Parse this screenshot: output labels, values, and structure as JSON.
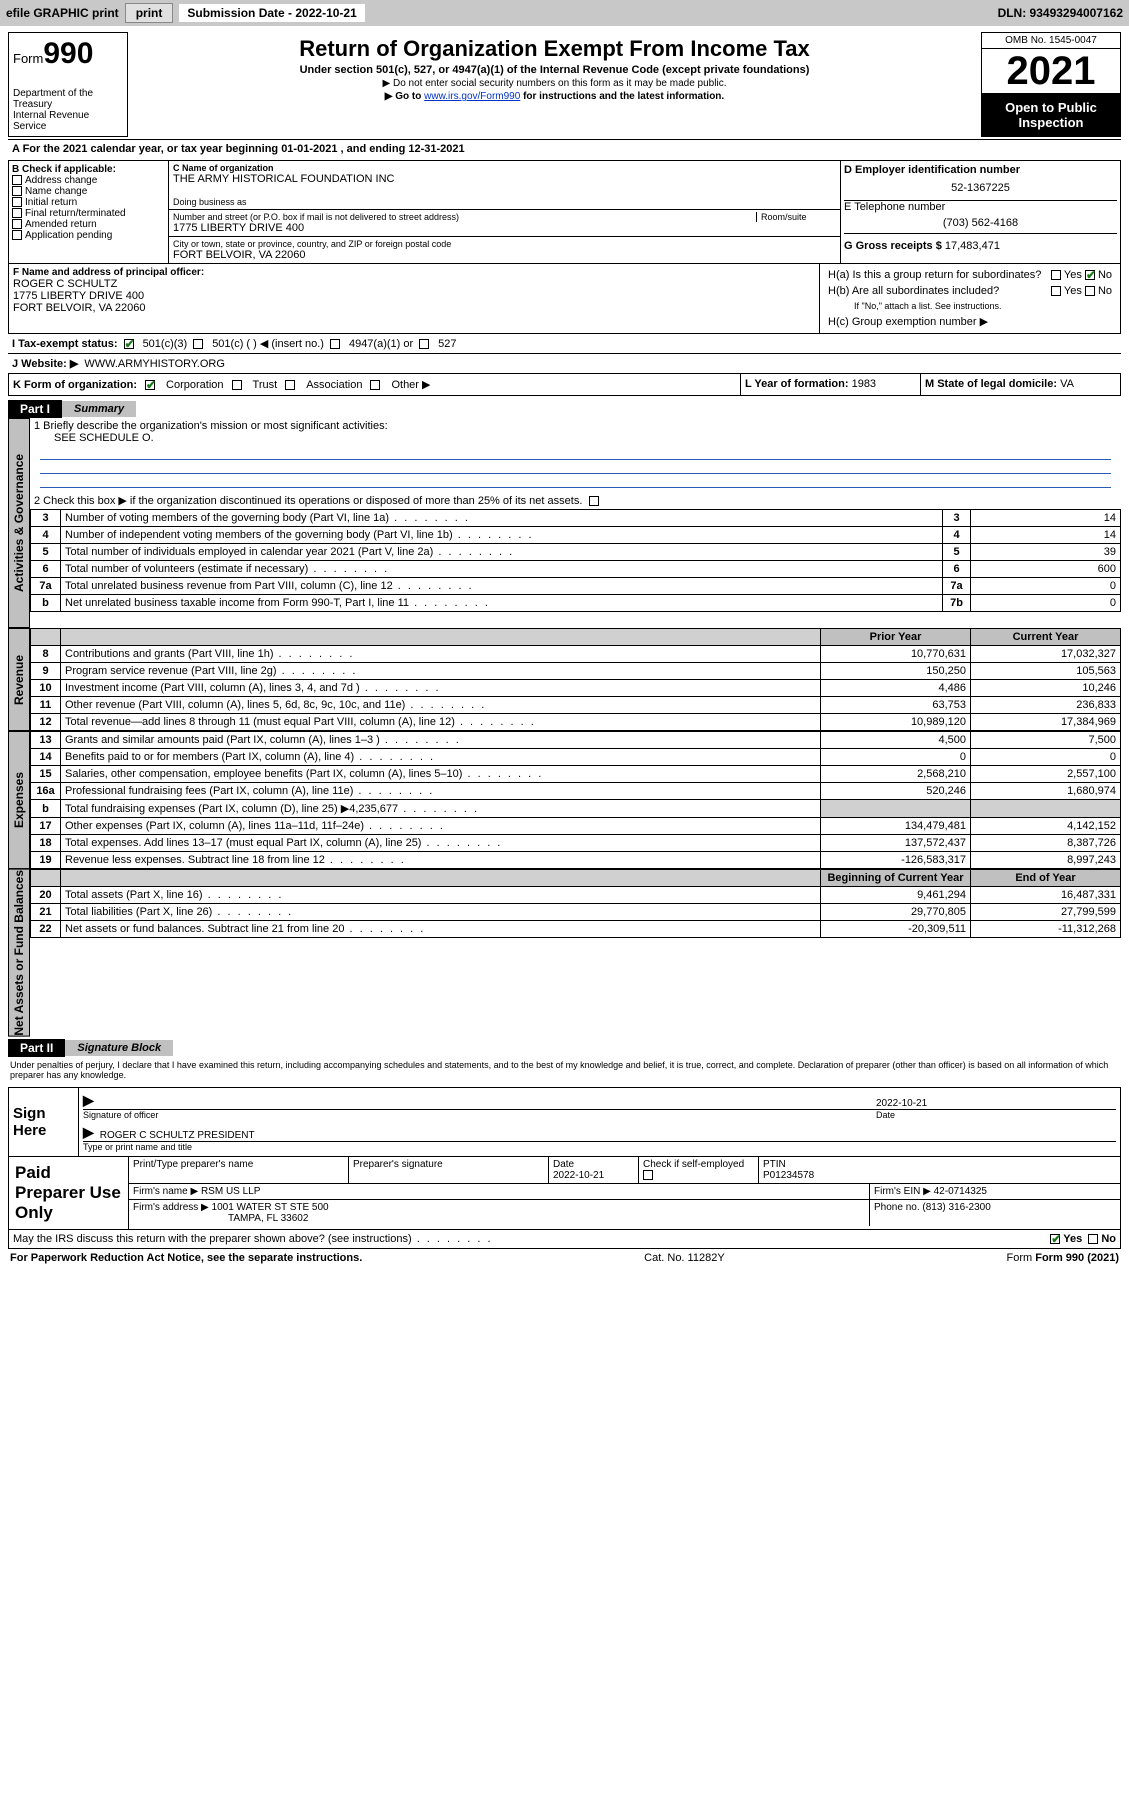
{
  "topbar": {
    "efile": "efile GRAPHIC print",
    "subdate_label": "Submission Date - 2022-10-21",
    "dln_label": "DLN: 93493294007162"
  },
  "header": {
    "form_word": "Form",
    "form_num": "990",
    "dept": "Department of the Treasury\nInternal Revenue Service",
    "title": "Return of Organization Exempt From Income Tax",
    "subtitle": "Under section 501(c), 527, or 4947(a)(1) of the Internal Revenue Code (except private foundations)",
    "note1": "▶ Do not enter social security numbers on this form as it may be made public.",
    "note2_pre": "▶ Go to ",
    "note2_link": "www.irs.gov/Form990",
    "note2_post": " for instructions and the latest information.",
    "omb": "OMB No. 1545-0047",
    "year": "2021",
    "open": "Open to Public Inspection"
  },
  "section_a": {
    "text": "A For the 2021 calendar year, or tax year beginning 01-01-2021   , and ending 12-31-2021"
  },
  "col_b": {
    "heading": "B Check if applicable:",
    "items": [
      "Address change",
      "Name change",
      "Initial return",
      "Final return/terminated",
      "Amended return",
      "Application pending"
    ]
  },
  "col_c": {
    "name_label": "C Name of organization",
    "name": "THE ARMY HISTORICAL FOUNDATION INC",
    "dba_label": "Doing business as",
    "addr_label": "Number and street (or P.O. box if mail is not delivered to street address)",
    "room_label": "Room/suite",
    "addr": "1775 LIBERTY DRIVE 400",
    "city_label": "City or town, state or province, country, and ZIP or foreign postal code",
    "city": "FORT BELVOIR, VA  22060"
  },
  "col_d": {
    "ein_label": "D Employer identification number",
    "ein": "52-1367225",
    "phone_label": "E Telephone number",
    "phone": "(703) 562-4168",
    "gross_label": "G Gross receipts $",
    "gross": "17,483,471"
  },
  "section_f": {
    "label": "F  Name and address of principal officer:",
    "name": "ROGER C SCHULTZ",
    "addr1": "1775 LIBERTY DRIVE 400",
    "addr2": "FORT BELVOIR, VA  22060"
  },
  "section_h": {
    "ha": "H(a)  Is this a group return for subordinates?",
    "hb": "H(b)  Are all subordinates included?",
    "hb_note": "If \"No,\" attach a list. See instructions.",
    "hc": "H(c)  Group exemption number ▶",
    "yes": "Yes",
    "no": "No"
  },
  "section_i": {
    "label": "I     Tax-exempt status:",
    "o1": "501(c)(3)",
    "o2": "501(c) (  ) ◀ (insert no.)",
    "o3": "4947(a)(1) or",
    "o4": "527"
  },
  "section_j": {
    "label": "J    Website: ▶",
    "value": "WWW.ARMYHISTORY.ORG"
  },
  "section_k": {
    "label": "K Form of organization:",
    "o1": "Corporation",
    "o2": "Trust",
    "o3": "Association",
    "o4": "Other ▶"
  },
  "section_l": {
    "label": "L Year of formation:",
    "value": "1983"
  },
  "section_m": {
    "label": "M State of legal domicile:",
    "value": "VA"
  },
  "part1": {
    "hdr": "Part I",
    "title": "Summary",
    "q1_label": "1   Briefly describe the organization's mission or most significant activities:",
    "q1_value": "SEE SCHEDULE O.",
    "q2": "2   Check this box ▶          if the organization discontinued its operations or disposed of more than 25% of its net assets.",
    "sections": {
      "gov": "Activities & Governance",
      "rev": "Revenue",
      "exp": "Expenses",
      "net": "Net Assets or Fund Balances"
    },
    "rows_gov": [
      {
        "n": "3",
        "t": "Number of voting members of the governing body (Part VI, line 1a)",
        "r": "3",
        "v": "14"
      },
      {
        "n": "4",
        "t": "Number of independent voting members of the governing body (Part VI, line 1b)",
        "r": "4",
        "v": "14"
      },
      {
        "n": "5",
        "t": "Total number of individuals employed in calendar year 2021 (Part V, line 2a)",
        "r": "5",
        "v": "39"
      },
      {
        "n": "6",
        "t": "Total number of volunteers (estimate if necessary)",
        "r": "6",
        "v": "600"
      },
      {
        "n": "7a",
        "t": "Total unrelated business revenue from Part VIII, column (C), line 12",
        "r": "7a",
        "v": "0"
      },
      {
        "n": "b",
        "t": "Net unrelated business taxable income from Form 990-T, Part I, line 11",
        "r": "7b",
        "v": "0"
      }
    ],
    "col_hdrs": {
      "prior": "Prior Year",
      "current": "Current Year"
    },
    "rows_rev": [
      {
        "n": "8",
        "t": "Contributions and grants (Part VIII, line 1h)",
        "p": "10,770,631",
        "c": "17,032,327"
      },
      {
        "n": "9",
        "t": "Program service revenue (Part VIII, line 2g)",
        "p": "150,250",
        "c": "105,563"
      },
      {
        "n": "10",
        "t": "Investment income (Part VIII, column (A), lines 3, 4, and 7d )",
        "p": "4,486",
        "c": "10,246"
      },
      {
        "n": "11",
        "t": "Other revenue (Part VIII, column (A), lines 5, 6d, 8c, 9c, 10c, and 11e)",
        "p": "63,753",
        "c": "236,833"
      },
      {
        "n": "12",
        "t": "Total revenue—add lines 8 through 11 (must equal Part VIII, column (A), line 12)",
        "p": "10,989,120",
        "c": "17,384,969"
      }
    ],
    "rows_exp": [
      {
        "n": "13",
        "t": "Grants and similar amounts paid (Part IX, column (A), lines 1–3 )",
        "p": "4,500",
        "c": "7,500"
      },
      {
        "n": "14",
        "t": "Benefits paid to or for members (Part IX, column (A), line 4)",
        "p": "0",
        "c": "0"
      },
      {
        "n": "15",
        "t": "Salaries, other compensation, employee benefits (Part IX, column (A), lines 5–10)",
        "p": "2,568,210",
        "c": "2,557,100"
      },
      {
        "n": "16a",
        "t": "Professional fundraising fees (Part IX, column (A), line 11e)",
        "p": "520,246",
        "c": "1,680,974"
      },
      {
        "n": "b",
        "t": "Total fundraising expenses (Part IX, column (D), line 25) ▶4,235,677",
        "p": "",
        "c": "",
        "shade": true
      },
      {
        "n": "17",
        "t": "Other expenses (Part IX, column (A), lines 11a–11d, 11f–24e)",
        "p": "134,479,481",
        "c": "4,142,152"
      },
      {
        "n": "18",
        "t": "Total expenses. Add lines 13–17 (must equal Part IX, column (A), line 25)",
        "p": "137,572,437",
        "c": "8,387,726"
      },
      {
        "n": "19",
        "t": "Revenue less expenses. Subtract line 18 from line 12",
        "p": "-126,583,317",
        "c": "8,997,243"
      }
    ],
    "col_hdrs2": {
      "prior": "Beginning of Current Year",
      "current": "End of Year"
    },
    "rows_net": [
      {
        "n": "20",
        "t": "Total assets (Part X, line 16)",
        "p": "9,461,294",
        "c": "16,487,331"
      },
      {
        "n": "21",
        "t": "Total liabilities (Part X, line 26)",
        "p": "29,770,805",
        "c": "27,799,599"
      },
      {
        "n": "22",
        "t": "Net assets or fund balances. Subtract line 21 from line 20",
        "p": "-20,309,511",
        "c": "-11,312,268"
      }
    ]
  },
  "part2": {
    "hdr": "Part II",
    "title": "Signature Block",
    "decl": "Under penalties of perjury, I declare that I have examined this return, including accompanying schedules and statements, and to the best of my knowledge and belief, it is true, correct, and complete. Declaration of preparer (other than officer) is based on all information of which preparer has any knowledge."
  },
  "sign": {
    "left": "Sign Here",
    "sig_label": "Signature of officer",
    "date_label": "Date",
    "date": "2022-10-21",
    "name": "ROGER C SCHULTZ  PRESIDENT",
    "name_label": "Type or print name and title"
  },
  "prep": {
    "left": "Paid Preparer Use Only",
    "r1_c1_label": "Print/Type preparer's name",
    "r1_c2_label": "Preparer's signature",
    "r1_c3_label": "Date",
    "r1_c3": "2022-10-21",
    "r1_c4_label": "Check         if self-employed",
    "r1_c5_label": "PTIN",
    "r1_c5": "P01234578",
    "r2_label": "Firm's name     ▶",
    "r2": "RSM US LLP",
    "r2b_label": "Firm's EIN ▶",
    "r2b": "42-0714325",
    "r3_label": "Firm's address ▶",
    "r3a": "1001 WATER ST STE 500",
    "r3b": "TAMPA, FL  33602",
    "r3c_label": "Phone no.",
    "r3c": "(813) 316-2300"
  },
  "footer": {
    "q": "May the IRS discuss this return with the preparer shown above? (see instructions)",
    "yes": "Yes",
    "no": "No",
    "pra": "For Paperwork Reduction Act Notice, see the separate instructions.",
    "cat": "Cat. No. 11282Y",
    "form": "Form 990 (2021)"
  },
  "colors": {
    "topbar_bg": "#c8c8c8",
    "link": "#0033cc",
    "rule": "#2b5bb8",
    "check": "#1a7a1a"
  }
}
